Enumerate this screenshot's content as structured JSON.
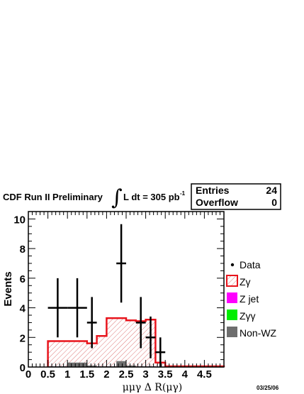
{
  "chart_data": {
    "type": "bar",
    "title_left": "CDF Run II Preliminary",
    "lumi_prefix": "L dt = 305 pb",
    "lumi_sup": "-1",
    "stats": {
      "entries_label": "Entries",
      "entries_value": "24",
      "overflow_label": "Overflow",
      "overflow_value": "0"
    },
    "xlabel": "μμγ Δ R(μγ)",
    "ylabel": "Events",
    "date": "03/25/06",
    "xlim": [
      0,
      5
    ],
    "ylim": [
      0,
      10.5
    ],
    "x_ticks": [
      {
        "v": 0,
        "label": "0"
      },
      {
        "v": 0.5,
        "label": "0.5"
      },
      {
        "v": 1,
        "label": "1"
      },
      {
        "v": 1.5,
        "label": "1.5"
      },
      {
        "v": 2,
        "label": "2"
      },
      {
        "v": 2.5,
        "label": "2.5"
      },
      {
        "v": 3,
        "label": "3"
      },
      {
        "v": 3.5,
        "label": "3.5"
      },
      {
        "v": 4,
        "label": "4"
      },
      {
        "v": 4.5,
        "label": "4.5"
      }
    ],
    "y_ticks": [
      {
        "v": 0,
        "label": "0"
      },
      {
        "v": 2,
        "label": "2"
      },
      {
        "v": 4,
        "label": "4"
      },
      {
        "v": 6,
        "label": "6"
      },
      {
        "v": 8,
        "label": "8"
      },
      {
        "v": 10,
        "label": "10"
      }
    ],
    "bin_edges": [
      0.5,
      1.0,
      1.5,
      1.75,
      2.0,
      2.25,
      2.5,
      2.75,
      3.0,
      3.25,
      3.5,
      5.0
    ],
    "series": [
      {
        "name": "Zγ",
        "type": "hist",
        "color": "#e8141c",
        "values": [
          1.75,
          1.75,
          1.6,
          2.1,
          3.3,
          3.3,
          3.15,
          3.1,
          3.2,
          0.3,
          0.05
        ]
      },
      {
        "name": "Z jet",
        "type": "hist",
        "color": "#ff00ff",
        "values": [
          0.05,
          0.05,
          0.05,
          0.05,
          0.05,
          0.05,
          0.05,
          0.05,
          0.05,
          0.03,
          0.02
        ]
      },
      {
        "name": "Zγγ",
        "type": "hist",
        "color": "#00ee00",
        "values": [
          0.03,
          0.03,
          0.03,
          0.03,
          0.03,
          0.03,
          0.03,
          0.03,
          0.03,
          0.02,
          0.02
        ]
      },
      {
        "name": "Non-WZ",
        "type": "hist",
        "color": "#6e6e6e",
        "values": [
          0.05,
          0.3,
          0.1,
          0.05,
          0.05,
          0.4,
          0.1,
          0.05,
          0.05,
          0.02,
          0.0
        ]
      }
    ],
    "data": {
      "name": "Data",
      "points": [
        {
          "x": 0.75,
          "y": 4,
          "xerr": 0.25,
          "yerr": 2.0
        },
        {
          "x": 1.25,
          "y": 4,
          "xerr": 0.25,
          "yerr": 2.0
        },
        {
          "x": 1.625,
          "y": 3,
          "xerr": 0.125,
          "yerr": 1.73
        },
        {
          "x": 2.375,
          "y": 7,
          "xerr": 0.125,
          "yerr": 2.65
        },
        {
          "x": 2.875,
          "y": 3,
          "xerr": 0.125,
          "yerr": 1.73
        },
        {
          "x": 3.125,
          "y": 2,
          "xerr": 0.125,
          "yerr": 1.41
        },
        {
          "x": 3.375,
          "y": 1,
          "xerr": 0.125,
          "yerr": 1.0
        }
      ]
    },
    "legend": {
      "placement": "right",
      "entries": [
        {
          "label": "Data",
          "style": "marker"
        },
        {
          "label": "Zγ",
          "style": "hatch",
          "color": "#e8141c"
        },
        {
          "label": "Z jet",
          "style": "fill",
          "color": "#ff00ff"
        },
        {
          "label": "Zγγ",
          "style": "fill",
          "color": "#00ee00"
        },
        {
          "label": "Non-WZ",
          "style": "fill",
          "color": "#6e6e6e"
        }
      ]
    }
  }
}
